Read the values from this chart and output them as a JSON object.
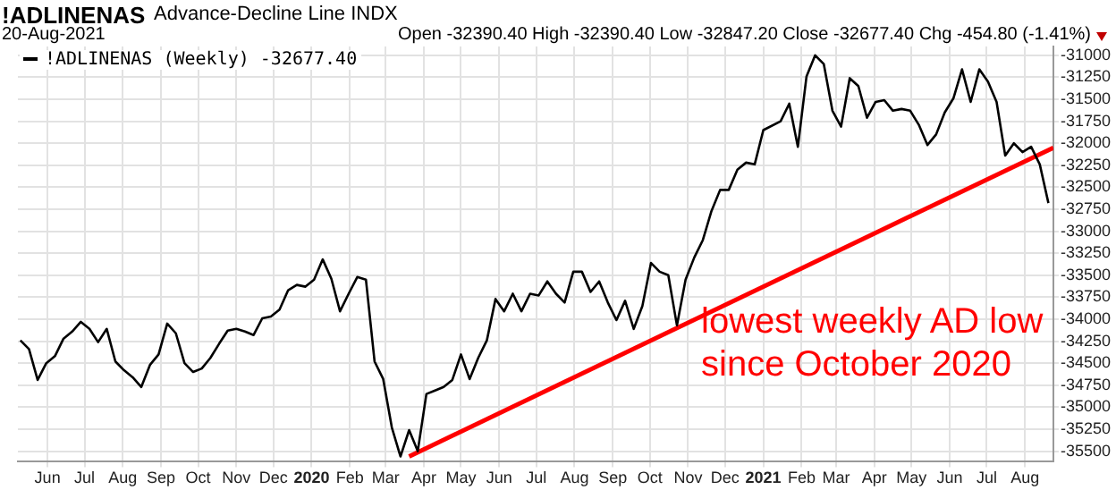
{
  "chart_data": {
    "type": "line",
    "title": "!ADLINENAS",
    "subtitle": "Advance-Decline Line INDX",
    "annotations": [
      "20-Aug-2021",
      "Open -32390.40  High -32390.40  Low -32847.20  Close -32677.40  Chg -454.80 (-1.41%)",
      "lowest weekly AD low",
      "since October 2020"
    ],
    "xlim": [
      "2019-05-08",
      "2021-08-24"
    ],
    "xticks": [
      {
        "value": "2019-06-01",
        "label": "Jun"
      },
      {
        "value": "2019-07-01",
        "label": "Jul"
      },
      {
        "value": "2019-08-01",
        "label": "Aug"
      },
      {
        "value": "2019-09-01",
        "label": "Sep"
      },
      {
        "value": "2019-10-01",
        "label": "Oct"
      },
      {
        "value": "2019-11-01",
        "label": "Nov"
      },
      {
        "value": "2019-12-01",
        "label": "Dec"
      },
      {
        "value": "2020-01-01",
        "label": "2020"
      },
      {
        "value": "2020-02-01",
        "label": "Feb"
      },
      {
        "value": "2020-03-01",
        "label": "Mar"
      },
      {
        "value": "2020-04-01",
        "label": "Apr"
      },
      {
        "value": "2020-05-01",
        "label": "May"
      },
      {
        "value": "2020-06-01",
        "label": "Jun"
      },
      {
        "value": "2020-07-01",
        "label": "Jul"
      },
      {
        "value": "2020-08-01",
        "label": "Aug"
      },
      {
        "value": "2020-09-01",
        "label": "Sep"
      },
      {
        "value": "2020-10-01",
        "label": "Oct"
      },
      {
        "value": "2020-11-01",
        "label": "Nov"
      },
      {
        "value": "2020-12-01",
        "label": "Dec"
      },
      {
        "value": "2021-01-01",
        "label": "2021"
      },
      {
        "value": "2021-02-01",
        "label": "Feb"
      },
      {
        "value": "2021-03-01",
        "label": "Mar"
      },
      {
        "value": "2021-04-01",
        "label": "Apr"
      },
      {
        "value": "2021-05-01",
        "label": "May"
      },
      {
        "value": "2021-06-01",
        "label": "Jun"
      },
      {
        "value": "2021-07-01",
        "label": "Jul"
      },
      {
        "value": "2021-08-01",
        "label": "Aug"
      }
    ],
    "ylim": [
      -35620,
      -30900
    ],
    "yticks": [
      -31000,
      -31250,
      -31500,
      -31750,
      -32000,
      -32250,
      -32500,
      -32750,
      -33000,
      -33250,
      -33500,
      -33750,
      -34000,
      -34250,
      -34500,
      -34750,
      -35000,
      -35250,
      -35500
    ],
    "grid": true,
    "legend": "top left",
    "marker": "none",
    "line_style": "solid",
    "series": [
      {
        "name": "!ADLINENAS (Weekly) -32677.40",
        "color": "#000000",
        "x": [
          "2019-05-10",
          "2019-05-17",
          "2019-05-24",
          "2019-05-31",
          "2019-06-07",
          "2019-06-14",
          "2019-06-21",
          "2019-06-28",
          "2019-07-05",
          "2019-07-12",
          "2019-07-19",
          "2019-07-26",
          "2019-08-02",
          "2019-08-09",
          "2019-08-16",
          "2019-08-23",
          "2019-08-30",
          "2019-09-06",
          "2019-09-13",
          "2019-09-20",
          "2019-09-27",
          "2019-10-04",
          "2019-10-11",
          "2019-10-18",
          "2019-10-25",
          "2019-11-01",
          "2019-11-08",
          "2019-11-15",
          "2019-11-22",
          "2019-11-29",
          "2019-12-06",
          "2019-12-13",
          "2019-12-20",
          "2019-12-27",
          "2020-01-03",
          "2020-01-10",
          "2020-01-17",
          "2020-01-24",
          "2020-01-31",
          "2020-02-07",
          "2020-02-14",
          "2020-02-21",
          "2020-02-28",
          "2020-03-06",
          "2020-03-13",
          "2020-03-20",
          "2020-03-27",
          "2020-04-03",
          "2020-04-10",
          "2020-04-17",
          "2020-04-24",
          "2020-05-01",
          "2020-05-08",
          "2020-05-15",
          "2020-05-22",
          "2020-05-29",
          "2020-06-05",
          "2020-06-12",
          "2020-06-19",
          "2020-06-26",
          "2020-07-03",
          "2020-07-10",
          "2020-07-17",
          "2020-07-24",
          "2020-07-31",
          "2020-08-07",
          "2020-08-14",
          "2020-08-21",
          "2020-08-28",
          "2020-09-04",
          "2020-09-11",
          "2020-09-18",
          "2020-09-25",
          "2020-10-02",
          "2020-10-09",
          "2020-10-16",
          "2020-10-23",
          "2020-10-30",
          "2020-11-06",
          "2020-11-13",
          "2020-11-20",
          "2020-11-27",
          "2020-12-04",
          "2020-12-11",
          "2020-12-18",
          "2020-12-25",
          "2021-01-01",
          "2021-01-15",
          "2021-01-22",
          "2021-01-29",
          "2021-02-05",
          "2021-02-12",
          "2021-02-19",
          "2021-02-26",
          "2021-03-05",
          "2021-03-12",
          "2021-03-19",
          "2021-03-26",
          "2021-04-02",
          "2021-04-09",
          "2021-04-16",
          "2021-04-23",
          "2021-04-30",
          "2021-05-07",
          "2021-05-14",
          "2021-05-21",
          "2021-05-28",
          "2021-06-04",
          "2021-06-11",
          "2021-06-18",
          "2021-06-25",
          "2021-07-02",
          "2021-07-09",
          "2021-07-16",
          "2021-07-23",
          "2021-07-30",
          "2021-08-06",
          "2021-08-13",
          "2021-08-20"
        ],
        "values": [
          -34240,
          -34340,
          -34690,
          -34500,
          -34420,
          -34220,
          -34140,
          -34030,
          -34110,
          -34260,
          -34110,
          -34480,
          -34580,
          -34660,
          -34770,
          -34520,
          -34400,
          -34050,
          -34160,
          -34500,
          -34600,
          -34560,
          -34440,
          -34280,
          -34130,
          -34110,
          -34140,
          -34180,
          -33990,
          -33970,
          -33890,
          -33670,
          -33610,
          -33630,
          -33550,
          -33320,
          -33540,
          -33910,
          -33710,
          -33520,
          -33550,
          -34480,
          -34680,
          -35230,
          -35560,
          -35260,
          -35500,
          -34850,
          -34810,
          -34770,
          -34690,
          -34400,
          -34680,
          -34440,
          -34240,
          -33770,
          -33910,
          -33710,
          -33910,
          -33710,
          -33730,
          -33570,
          -33710,
          -33810,
          -33460,
          -33460,
          -33690,
          -33570,
          -33810,
          -34010,
          -33790,
          -34110,
          -33850,
          -33360,
          -33460,
          -33500,
          -34070,
          -33550,
          -33300,
          -33100,
          -32770,
          -32530,
          -32530,
          -32300,
          -32220,
          -32240,
          -31850,
          -31750,
          -31550,
          -32040,
          -31240,
          -31000,
          -31100,
          -31630,
          -31810,
          -31260,
          -31350,
          -31710,
          -31530,
          -31510,
          -31630,
          -31610,
          -31630,
          -31790,
          -32020,
          -31900,
          -31650,
          -31490,
          -31160,
          -31530,
          -31160,
          -31300,
          -31530,
          -32140,
          -32000,
          -32100,
          -32040,
          -32240,
          -32680
        ]
      },
      {
        "type": "line",
        "color": "#ff0000",
        "x": [
          "2020-03-20",
          "2021-08-24"
        ],
        "values": [
          -35560,
          -32050
        ]
      }
    ]
  }
}
